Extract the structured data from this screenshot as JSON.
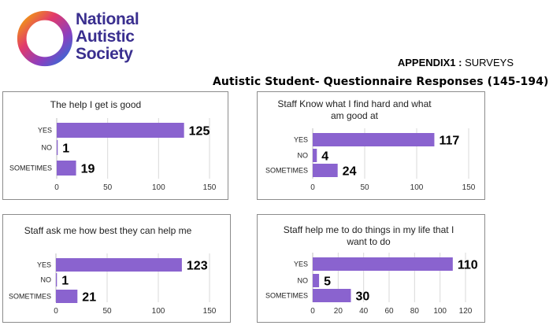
{
  "header": {
    "logo_lines": [
      "National",
      "Autistic",
      "Society"
    ],
    "appendix_bold": "APPENDIX1 :",
    "appendix_rest": " SURVEYS",
    "doc_title": "Autistic Student- Questionnaire Responses (145-194)"
  },
  "colors": {
    "bar": "#8a63cf",
    "grid": "#d9d9d9",
    "border": "#8c8c8c",
    "logo_text": "#3a2f8f"
  },
  "chart_data": [
    {
      "type": "bar",
      "orientation": "horizontal",
      "title": "The help I get is good",
      "categories": [
        "YES",
        "NO",
        "SOMETIMES"
      ],
      "values": [
        125,
        1,
        19
      ],
      "xlim": [
        0,
        150
      ],
      "xticks": [
        0,
        50,
        100,
        150
      ],
      "grid": true
    },
    {
      "type": "bar",
      "orientation": "horizontal",
      "title": "Staff Know  what I find hard and what am good at",
      "categories": [
        "YES",
        "NO",
        "SOMETIMES"
      ],
      "values": [
        117,
        4,
        24
      ],
      "xlim": [
        0,
        150
      ],
      "xticks": [
        0,
        50,
        100,
        150
      ],
      "grid": true
    },
    {
      "type": "bar",
      "orientation": "horizontal",
      "title": "Staff ask  me  how best they can help me",
      "categories": [
        "YES",
        "NO",
        "SOMETIMES"
      ],
      "values": [
        123,
        1,
        21
      ],
      "xlim": [
        0,
        150
      ],
      "xticks": [
        0,
        50,
        100,
        150
      ],
      "grid": true
    },
    {
      "type": "bar",
      "orientation": "horizontal",
      "title": "Staff help  me  to do things in my life that I want to do",
      "categories": [
        "YES",
        "NO",
        "SOMETIMES"
      ],
      "values": [
        110,
        5,
        30
      ],
      "xlim": [
        0,
        120
      ],
      "xticks": [
        0,
        20,
        40,
        60,
        80,
        100,
        120
      ],
      "grid": true
    }
  ]
}
